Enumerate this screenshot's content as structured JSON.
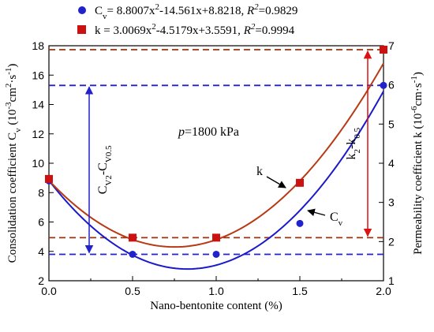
{
  "chart_data": {
    "type": "scatter",
    "x": [
      0.0,
      0.5,
      1.0,
      1.5,
      2.0
    ],
    "xlabel": "Nano-bentonite content (%)",
    "xlim": [
      0.0,
      2.0
    ],
    "xticks": [
      "0.0",
      "0.5",
      "1.0",
      "1.5",
      "2.0"
    ],
    "ylabel_left": {
      "main": "Consolidation coefficient C",
      "sub": "v",
      "unit_pre": " (10",
      "unit_sup1": "-3",
      "unit_mid": "cm",
      "unit_sup2": "2",
      "unit_mid2": "·s",
      "unit_sup3": "-1",
      "unit_post": ")"
    },
    "ylim_left": [
      2,
      18
    ],
    "yticks_left": [
      "2",
      "4",
      "6",
      "8",
      "10",
      "12",
      "14",
      "16",
      "18"
    ],
    "ylabel_right": {
      "main": "Permeability coefficient k (10",
      "sup1": "-6",
      "mid": "cm·s",
      "sup2": "-1",
      "post": ")"
    },
    "ylim_right": [
      1,
      7
    ],
    "yticks_right": [
      "1",
      "2",
      "3",
      "4",
      "5",
      "6",
      "7"
    ],
    "series": [
      {
        "name": "Cv",
        "axis": "left",
        "marker": "circle",
        "color": "#2222cc",
        "values": [
          8.8,
          3.8,
          3.8,
          5.9,
          15.3
        ],
        "fit": [
          8.8007,
          -14.561,
          8.8218
        ],
        "legend": {
          "pre": "C",
          "sub": "v",
          "eq": "= 8.8007x",
          "sq": "2",
          "rest": "-14.561x+8.8218, ",
          "r": "R",
          "r2sup": "2",
          "rval": "=0.9829"
        }
      },
      {
        "name": "k",
        "axis": "right",
        "marker": "square",
        "color": "#cc1111",
        "values": [
          3.6,
          2.1,
          2.1,
          3.5,
          6.9
        ],
        "fit": [
          3.0069,
          -4.5179,
          3.5591
        ],
        "legend": {
          "pre": "k",
          "sub": "",
          "eq": " = 3.0069x",
          "sq": "2",
          "rest": "-4.5179x+3.5591, ",
          "r": "R",
          "r2sup": "2",
          "rval": "=0.9994"
        }
      }
    ],
    "reference_lines": [
      {
        "axis": "left",
        "y": 15.3,
        "color": "#2222cc"
      },
      {
        "axis": "left",
        "y": 3.8,
        "color": "#2222cc"
      },
      {
        "axis": "right",
        "y": 6.9,
        "color": "#993311"
      },
      {
        "axis": "right",
        "y": 2.1,
        "color": "#993311"
      }
    ],
    "annotations": {
      "pressure": {
        "p": "p",
        "rest": "=1800 kPa"
      },
      "cv_diff": {
        "a": "C",
        "a_sub": "V2",
        "mid": "-C",
        "b_sub": "V0.5"
      },
      "k_diff": {
        "a": "k",
        "a_sub": "2",
        "mid": "-k",
        "b_sub": "0.5"
      },
      "k_label": "k",
      "cv_label": {
        "main": "C",
        "sub": "v"
      }
    },
    "grid": false
  }
}
